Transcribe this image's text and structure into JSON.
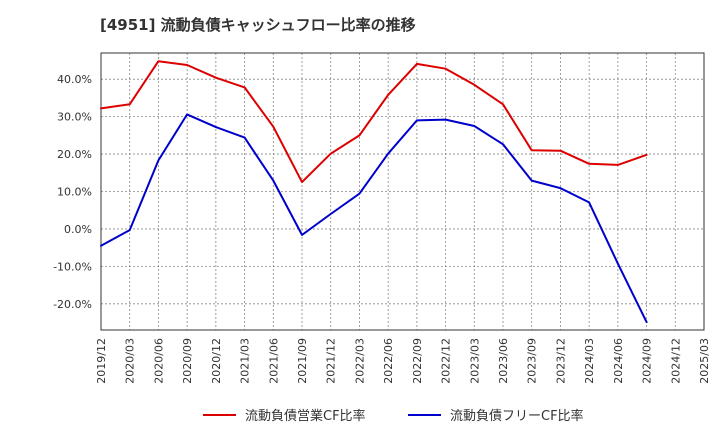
{
  "chart_data": {
    "type": "line",
    "title": "[4951]  流動負債キャッシュフロー比率の推移",
    "xlabel": "",
    "ylabel": "",
    "ylim": [
      -27,
      47
    ],
    "yticks": [
      40,
      30,
      20,
      10,
      0,
      -10,
      -20
    ],
    "ytick_labels": [
      "40.0%",
      "30.0%",
      "20.0%",
      "10.0%",
      "0.0%",
      "-10.0%",
      "-20.0%"
    ],
    "categories": [
      "2019/12",
      "2020/03",
      "2020/06",
      "2020/09",
      "2020/12",
      "2021/03",
      "2021/06",
      "2021/09",
      "2021/12",
      "2022/03",
      "2022/06",
      "2022/09",
      "2022/12",
      "2023/03",
      "2023/06",
      "2023/09",
      "2023/12",
      "2024/03",
      "2024/06",
      "2024/09",
      "2024/12",
      "2025/03"
    ],
    "grid": true,
    "legend_position": "bottom",
    "series": [
      {
        "name": "流動負債営業CF比率",
        "color": "#dd0000",
        "values": [
          32.2,
          33.3,
          44.8,
          43.8,
          40.4,
          37.8,
          27.3,
          12.5,
          20.1,
          25.0,
          35.8,
          44.1,
          42.8,
          38.5,
          33.3,
          21.0,
          20.9,
          17.4,
          17.1,
          19.8,
          null,
          null
        ]
      },
      {
        "name": "流動負債フリーCF比率",
        "color": "#0000cc",
        "values": [
          -4.5,
          -0.3,
          18.3,
          30.6,
          27.2,
          24.4,
          12.9,
          -1.6,
          4.0,
          9.4,
          20.1,
          29.0,
          29.2,
          27.5,
          22.6,
          12.9,
          10.9,
          7.1,
          -9.3,
          -24.9,
          null,
          null
        ]
      }
    ]
  }
}
